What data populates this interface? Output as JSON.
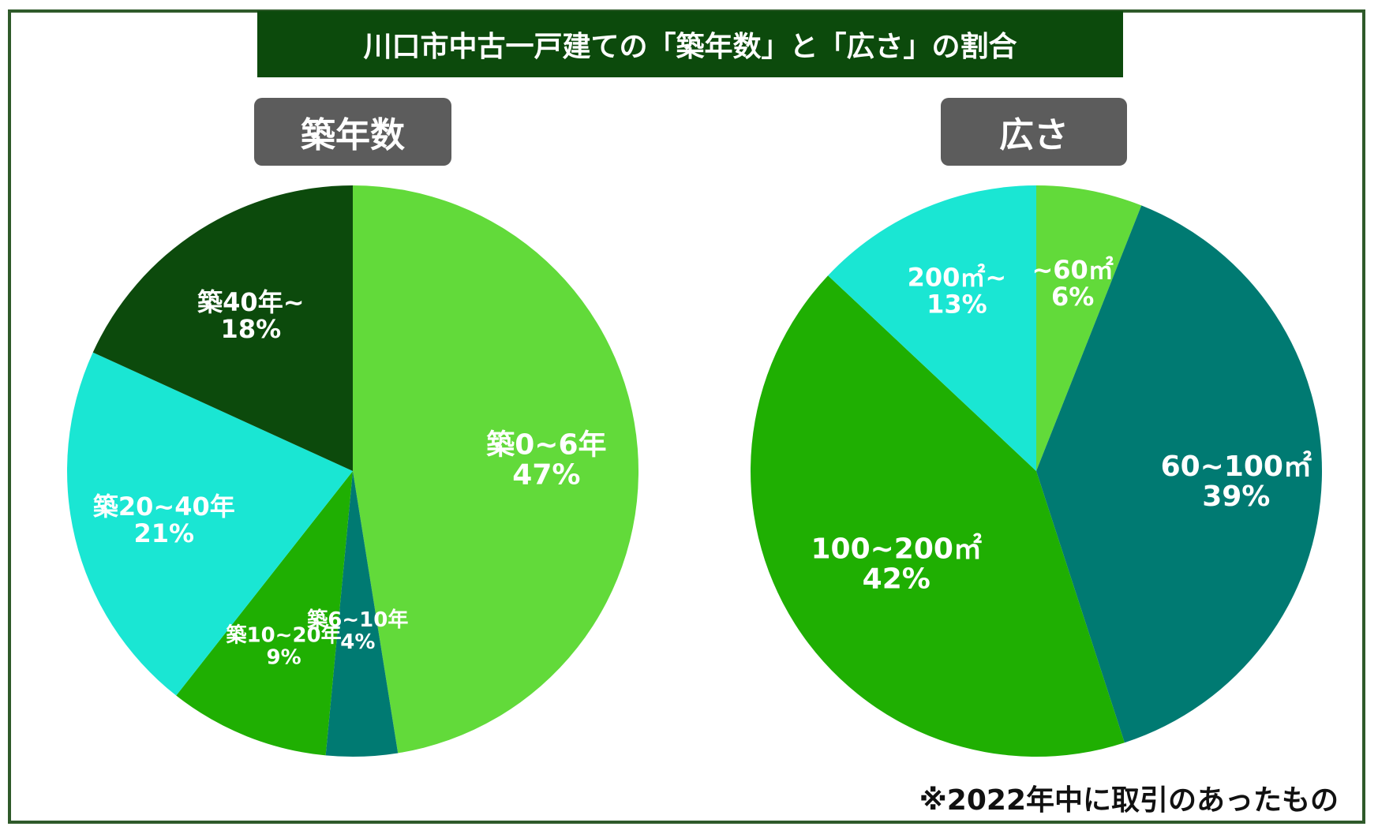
{
  "title": "川口市中古一戸建ての「築年数」と「広さ」の割合",
  "footnote": "※2022年中に取引のあったもの",
  "chart_data": [
    {
      "type": "pie",
      "title": "築年数",
      "slices": [
        {
          "label": "築0~6年",
          "value": 47,
          "value_label": "47%",
          "color": "#62da3a"
        },
        {
          "label": "築6~10年",
          "value": 4,
          "value_label": "4%",
          "color": "#007a72"
        },
        {
          "label": "築10~20年",
          "value": 9,
          "value_label": "9%",
          "color": "#1faf02"
        },
        {
          "label": "築20~40年",
          "value": 21,
          "value_label": "21%",
          "color": "#1ae6d3"
        },
        {
          "label": "築40年~",
          "value": 18,
          "value_label": "18%",
          "color": "#0c4a0c"
        }
      ]
    },
    {
      "type": "pie",
      "title": "広さ",
      "slices": [
        {
          "label": "~60㎡",
          "value": 6,
          "value_label": "6%",
          "color": "#62da3a"
        },
        {
          "label": "60~100㎡",
          "value": 39,
          "value_label": "39%",
          "color": "#007a72"
        },
        {
          "label": "100~200㎡",
          "value": 42,
          "value_label": "42%",
          "color": "#1faf02"
        },
        {
          "label": "200㎡~",
          "value": 13,
          "value_label": "13%",
          "color": "#1ae6d3"
        }
      ]
    }
  ]
}
